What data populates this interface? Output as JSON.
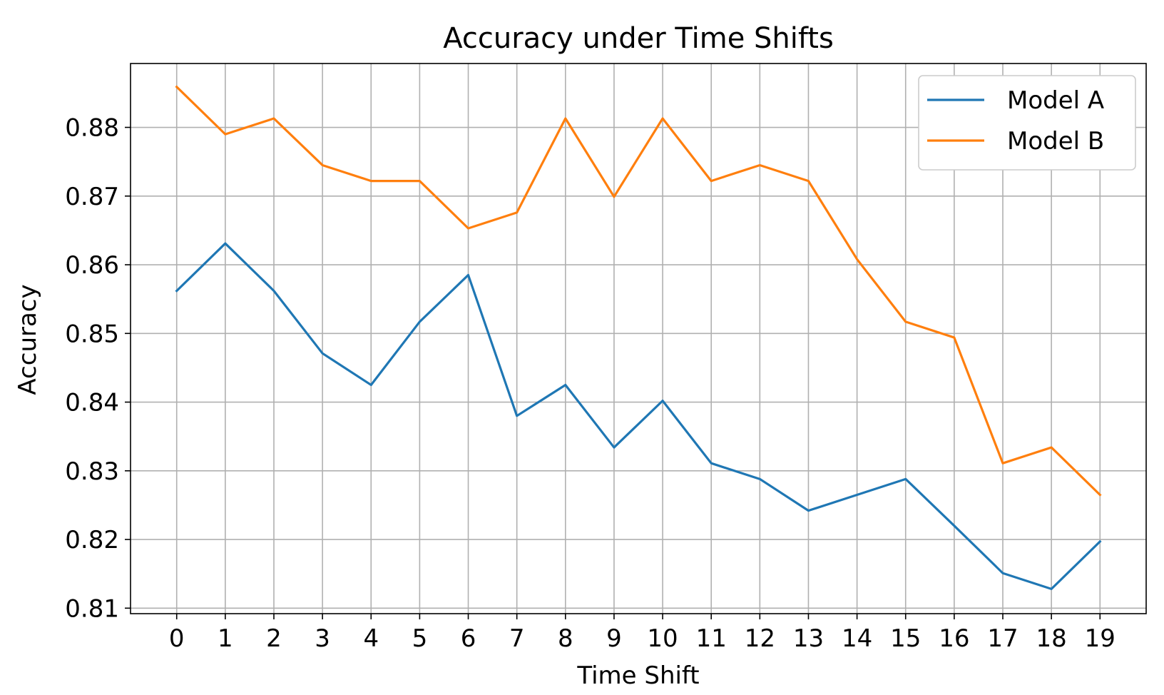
{
  "chart_data": {
    "type": "line",
    "title": "Accuracy under Time Shifts",
    "xlabel": "Time Shift",
    "ylabel": "Accuracy",
    "x": [
      0,
      1,
      2,
      3,
      4,
      5,
      6,
      7,
      8,
      9,
      10,
      11,
      12,
      13,
      14,
      15,
      16,
      17,
      18,
      19
    ],
    "x_tick_labels": [
      "0",
      "1",
      "2",
      "3",
      "4",
      "5",
      "6",
      "7",
      "8",
      "9",
      "10",
      "11",
      "12",
      "13",
      "14",
      "15",
      "16",
      "17",
      "18",
      "19"
    ],
    "y_ticks": [
      0.81,
      0.82,
      0.83,
      0.84,
      0.85,
      0.86,
      0.87,
      0.88
    ],
    "y_tick_labels": [
      "0.81",
      "0.82",
      "0.83",
      "0.84",
      "0.85",
      "0.86",
      "0.87",
      "0.88"
    ],
    "xlim": [
      -0.95,
      19.95
    ],
    "ylim": [
      0.8092,
      0.8893
    ],
    "grid": true,
    "legend_position": "top-right",
    "series": [
      {
        "name": "Model A",
        "color": "#1f77b4",
        "values": [
          0.8562,
          0.8631,
          0.8562,
          0.8471,
          0.8425,
          0.8517,
          0.8585,
          0.838,
          0.8425,
          0.8334,
          0.8402,
          0.8311,
          0.8288,
          0.8242,
          0.8265,
          0.8288,
          0.822,
          0.8151,
          0.8128,
          0.8197
        ]
      },
      {
        "name": "Model B",
        "color": "#ff7f0e",
        "values": [
          0.8859,
          0.879,
          0.8813,
          0.8745,
          0.8722,
          0.8722,
          0.8653,
          0.8676,
          0.8813,
          0.8699,
          0.8813,
          0.8722,
          0.8745,
          0.8722,
          0.8608,
          0.8517,
          0.8494,
          0.8311,
          0.8334,
          0.8265
        ]
      }
    ]
  }
}
